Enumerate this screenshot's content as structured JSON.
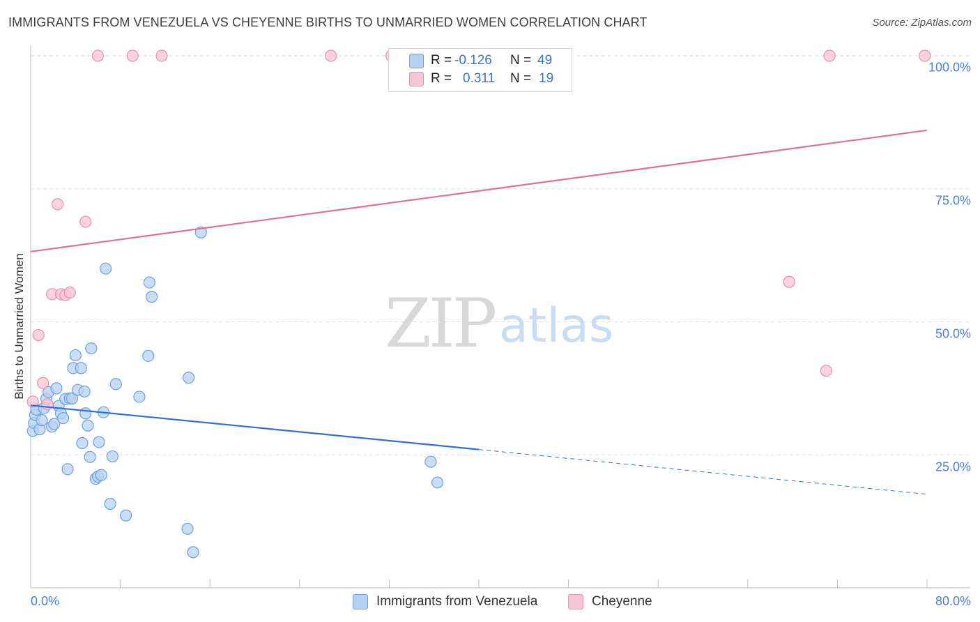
{
  "title": "IMMIGRANTS FROM VENEZUELA VS CHEYENNE BIRTHS TO UNMARRIED WOMEN CORRELATION CHART",
  "source": "Source: ZipAtlas.com",
  "watermark": {
    "zip": "ZIP",
    "atlas": "atlas"
  },
  "legend": {
    "r_label": "R =",
    "n_label": "N =",
    "venezuela": {
      "r": "-0.126",
      "n": "49"
    },
    "cheyenne": {
      "r": "0.311",
      "n": "19"
    }
  },
  "chart_data": {
    "type": "scatter",
    "title": "IMMIGRANTS FROM VENEZUELA VS CHEYENNE BIRTHS TO UNMARRIED WOMEN CORRELATION CHART",
    "xlabel": "",
    "ylabel": "Births to Unmarried Women",
    "xlim": [
      0,
      80
    ],
    "ylim": [
      0,
      100
    ],
    "x_tick_labels": [
      "0.0%",
      "80.0%"
    ],
    "y_ticks": [
      25,
      50,
      75,
      100
    ],
    "y_tick_labels": [
      "25.0%",
      "50.0%",
      "75.0%",
      "100.0%"
    ],
    "colors": {
      "venezuela_fill": "#b7d1f2",
      "venezuela_stroke": "#6f9ee0",
      "venezuela_line": "#2f6fd6",
      "cheyenne_fill": "#f7c5d4",
      "cheyenne_stroke": "#e98fac",
      "cheyenne_line": "#e0709a",
      "axis": "#bbbbbb",
      "grid": "#dedede"
    },
    "series": [
      {
        "name": "Immigrants from Venezuela",
        "points": [
          [
            0.2,
            29.5
          ],
          [
            0.3,
            31.0
          ],
          [
            0.4,
            32.5
          ],
          [
            0.5,
            33.5
          ],
          [
            0.8,
            29.8
          ],
          [
            1.0,
            31.5
          ],
          [
            1.2,
            33.8
          ],
          [
            1.4,
            35.5
          ],
          [
            1.6,
            36.8
          ],
          [
            1.9,
            30.3
          ],
          [
            2.1,
            30.8
          ],
          [
            2.3,
            37.5
          ],
          [
            2.5,
            34.2
          ],
          [
            2.7,
            32.8
          ],
          [
            2.9,
            31.9
          ],
          [
            3.1,
            35.5
          ],
          [
            3.3,
            22.3
          ],
          [
            3.5,
            35.6
          ],
          [
            3.7,
            35.6
          ],
          [
            3.8,
            41.3
          ],
          [
            4.0,
            43.7
          ],
          [
            4.2,
            37.2
          ],
          [
            4.5,
            41.3
          ],
          [
            4.6,
            27.2
          ],
          [
            4.8,
            36.9
          ],
          [
            4.9,
            32.8
          ],
          [
            5.1,
            30.5
          ],
          [
            5.3,
            24.6
          ],
          [
            5.4,
            45.0
          ],
          [
            5.8,
            20.5
          ],
          [
            6.0,
            20.9
          ],
          [
            6.1,
            27.4
          ],
          [
            6.3,
            21.2
          ],
          [
            6.5,
            33.0
          ],
          [
            6.7,
            60.0
          ],
          [
            7.1,
            15.8
          ],
          [
            7.3,
            24.7
          ],
          [
            7.6,
            38.3
          ],
          [
            8.5,
            13.6
          ],
          [
            9.7,
            35.9
          ],
          [
            10.5,
            43.6
          ],
          [
            10.6,
            57.4
          ],
          [
            10.8,
            54.7
          ],
          [
            14.1,
            39.5
          ],
          [
            14.0,
            11.1
          ],
          [
            14.5,
            6.7
          ],
          [
            15.2,
            66.8
          ],
          [
            35.7,
            23.7
          ],
          [
            36.3,
            19.8
          ]
        ],
        "trend": {
          "x0": 0,
          "y0": 34.3,
          "x1": 40,
          "y1": 26.0,
          "dashed_to_x": 80,
          "dashed_to_y": 17.6
        }
      },
      {
        "name": "Cheyenne",
        "points": [
          [
            0.2,
            35.0
          ],
          [
            0.7,
            47.5
          ],
          [
            1.1,
            38.5
          ],
          [
            1.5,
            34.5
          ],
          [
            1.9,
            55.2
          ],
          [
            2.4,
            72.1
          ],
          [
            2.7,
            55.2
          ],
          [
            3.1,
            55.0
          ],
          [
            3.5,
            55.5
          ],
          [
            4.9,
            68.8
          ],
          [
            6.0,
            100.0
          ],
          [
            9.1,
            100.0
          ],
          [
            11.7,
            100.0
          ],
          [
            26.8,
            100.0
          ],
          [
            32.2,
            100.0
          ],
          [
            67.7,
            57.5
          ],
          [
            71.0,
            40.8
          ],
          [
            71.3,
            100.0
          ],
          [
            79.8,
            100.0
          ]
        ],
        "trend": {
          "x0": 0,
          "y0": 63.2,
          "x1": 80,
          "y1": 86.0
        }
      }
    ]
  }
}
